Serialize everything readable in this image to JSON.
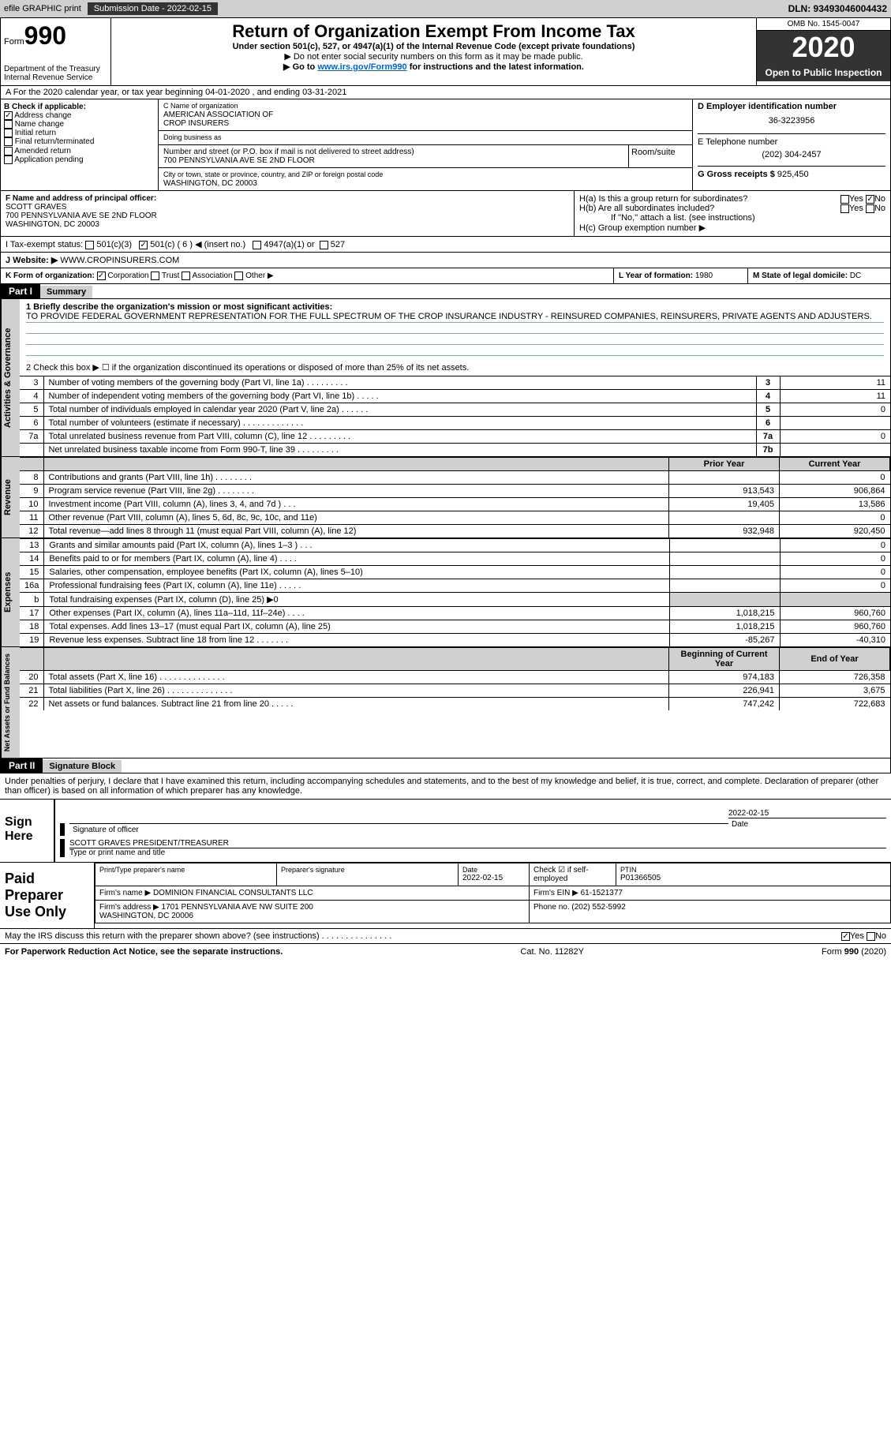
{
  "topbar": {
    "efile": "efile GRAPHIC print",
    "sub_label": "Submission Date - 2022-02-15",
    "dln_label": "DLN: 93493046004432"
  },
  "header": {
    "form_label": "Form",
    "form_num": "990",
    "dept": "Department of the Treasury\nInternal Revenue Service",
    "title": "Return of Organization Exempt From Income Tax",
    "subtitle": "Under section 501(c), 527, or 4947(a)(1) of the Internal Revenue Code (except private foundations)",
    "note1": "▶ Do not enter social security numbers on this form as it may be made public.",
    "note2_pre": "▶ Go to ",
    "note2_link": "www.irs.gov/Form990",
    "note2_post": " for instructions and the latest information.",
    "omb": "OMB No. 1545-0047",
    "year": "2020",
    "inspection": "Open to Public Inspection"
  },
  "row_a": "A For the 2020 calendar year, or tax year beginning 04-01-2020    , and ending 03-31-2021",
  "col_b": {
    "header": "B Check if applicable:",
    "items": [
      "Address change",
      "Name change",
      "Initial return",
      "Final return/terminated",
      "Amended return",
      "Application pending"
    ],
    "checked": [
      true,
      false,
      false,
      false,
      false,
      false
    ]
  },
  "col_c": {
    "lbl_name": "C Name of organization",
    "org": "AMERICAN ASSOCIATION OF\nCROP INSURERS",
    "lbl_dba": "Doing business as",
    "lbl_addr": "Number and street (or P.O. box if mail is not delivered to street address)",
    "lbl_room": "Room/suite",
    "addr": "700 PENNSYLVANIA AVE SE 2ND FLOOR",
    "lbl_city": "City or town, state or province, country, and ZIP or foreign postal code",
    "city": "WASHINGTON, DC  20003"
  },
  "col_d": {
    "lbl": "D Employer identification number",
    "ein": "36-3223956"
  },
  "col_e": {
    "lbl_phone": "E Telephone number",
    "phone": "(202) 304-2457",
    "lbl_gross": "G Gross receipts $",
    "gross": "925,450"
  },
  "col_f": {
    "lbl": "F Name and address of principal officer:",
    "name": "SCOTT GRAVES",
    "addr1": "700 PENNSYLVANIA AVE SE 2ND FLOOR",
    "addr2": "WASHINGTON, DC  20003"
  },
  "col_h": {
    "ha": "H(a)  Is this a group return for subordinates?",
    "hb": "H(b)  Are all subordinates included?",
    "hb_note": "If \"No,\" attach a list. (see instructions)",
    "hc": "H(c)  Group exemption number ▶"
  },
  "row_i": {
    "lbl": "I   Tax-exempt status:",
    "opts": [
      "501(c)(3)",
      "501(c) ( 6 ) ◀ (insert no.)",
      "4947(a)(1) or",
      "527"
    ]
  },
  "row_j": {
    "lbl": "J   Website: ▶",
    "val": "WWW.CROPINSURERS.COM"
  },
  "row_k": {
    "lbl": "K Form of organization:",
    "opts": [
      "Corporation",
      "Trust",
      "Association",
      "Other ▶"
    ]
  },
  "row_l": {
    "lbl": "L Year of formation:",
    "val": "1980"
  },
  "row_m": {
    "lbl": "M State of legal domicile:",
    "val": "DC"
  },
  "part1": {
    "tag": "Part I",
    "title": "Summary",
    "q1_lbl": "1   Briefly describe the organization's mission or most significant activities:",
    "q1_text": "TO PROVIDE FEDERAL GOVERNMENT REPRESENTATION FOR THE FULL SPECTRUM OF THE CROP INSURANCE INDUSTRY - REINSURED COMPANIES, REINSURERS, PRIVATE AGENTS AND ADJUSTERS.",
    "q2": "2   Check this box ▶ ☐  if the organization discontinued its operations or disposed of more than 25% of its net assets.",
    "gov_rows": [
      {
        "n": "3",
        "t": "Number of voting members of the governing body (Part VI, line 1a)   .    .    .    .    .    .    .    .    .",
        "b": "3",
        "v": "11"
      },
      {
        "n": "4",
        "t": "Number of independent voting members of the governing body (Part VI, line 1b)   .    .    .    .    .",
        "b": "4",
        "v": "11"
      },
      {
        "n": "5",
        "t": "Total number of individuals employed in calendar year 2020 (Part V, line 2a)   .    .    .    .    .    .",
        "b": "5",
        "v": "0"
      },
      {
        "n": "6",
        "t": "Total number of volunteers (estimate if necessary)   .    .    .    .    .    .    .    .    .    .    .    .    .",
        "b": "6",
        "v": ""
      },
      {
        "n": "7a",
        "t": "Total unrelated business revenue from Part VIII, column (C), line 12   .    .    .    .    .    .    .    .    .",
        "b": "7a",
        "v": "0"
      },
      {
        "n": "",
        "t": "Net unrelated business taxable income from Form 990-T, line 39   .    .    .    .    .    .    .    .    .",
        "b": "7b",
        "v": ""
      }
    ],
    "hdr_prior": "Prior Year",
    "hdr_curr": "Current Year",
    "rev_rows": [
      {
        "n": "8",
        "t": "Contributions and grants (Part VIII, line 1h)   .    .    .    .    .    .    .    .",
        "p": "",
        "c": "0"
      },
      {
        "n": "9",
        "t": "Program service revenue (Part VIII, line 2g)   .    .    .    .    .    .    .    .",
        "p": "913,543",
        "c": "906,864"
      },
      {
        "n": "10",
        "t": "Investment income (Part VIII, column (A), lines 3, 4, and 7d )   .    .    .",
        "p": "19,405",
        "c": "13,586"
      },
      {
        "n": "11",
        "t": "Other revenue (Part VIII, column (A), lines 5, 6d, 8c, 9c, 10c, and 11e)",
        "p": "",
        "c": "0"
      },
      {
        "n": "12",
        "t": "Total revenue—add lines 8 through 11 (must equal Part VIII, column (A), line 12)",
        "p": "932,948",
        "c": "920,450"
      }
    ],
    "exp_rows": [
      {
        "n": "13",
        "t": "Grants and similar amounts paid (Part IX, column (A), lines 1–3 )   .    .    .",
        "p": "",
        "c": "0"
      },
      {
        "n": "14",
        "t": "Benefits paid to or for members (Part IX, column (A), line 4)   .    .    .    .",
        "p": "",
        "c": "0"
      },
      {
        "n": "15",
        "t": "Salaries, other compensation, employee benefits (Part IX, column (A), lines 5–10)",
        "p": "",
        "c": "0"
      },
      {
        "n": "16a",
        "t": "Professional fundraising fees (Part IX, column (A), line 11e)   .    .    .    .    .",
        "p": "",
        "c": "0"
      },
      {
        "n": "b",
        "t": "Total fundraising expenses (Part IX, column (D), line 25) ▶0",
        "p": "shade",
        "c": "shade"
      },
      {
        "n": "17",
        "t": "Other expenses (Part IX, column (A), lines 11a–11d, 11f–24e)   .    .    .    .",
        "p": "1,018,215",
        "c": "960,760"
      },
      {
        "n": "18",
        "t": "Total expenses. Add lines 13–17 (must equal Part IX, column (A), line 25)",
        "p": "1,018,215",
        "c": "960,760"
      },
      {
        "n": "19",
        "t": "Revenue less expenses. Subtract line 18 from line 12   .    .    .    .    .    .    .",
        "p": "-85,267",
        "c": "-40,310"
      }
    ],
    "hdr_boy": "Beginning of Current Year",
    "hdr_eoy": "End of Year",
    "net_rows": [
      {
        "n": "20",
        "t": "Total assets (Part X, line 16)   .    .    .    .    .    .    .    .    .    .    .    .    .    .",
        "p": "974,183",
        "c": "726,358"
      },
      {
        "n": "21",
        "t": "Total liabilities (Part X, line 26)   .    .    .    .    .    .    .    .    .    .    .    .    .    .",
        "p": "226,941",
        "c": "3,675"
      },
      {
        "n": "22",
        "t": "Net assets or fund balances. Subtract line 21 from line 20   .    .    .    .    .",
        "p": "747,242",
        "c": "722,683"
      }
    ],
    "vlabels": {
      "gov": "Activities & Governance",
      "rev": "Revenue",
      "exp": "Expenses",
      "net": "Net Assets or Fund Balances"
    }
  },
  "part2": {
    "tag": "Part II",
    "title": "Signature Block",
    "perjury": "Under penalties of perjury, I declare that I have examined this return, including accompanying schedules and statements, and to the best of my knowledge and belief, it is true, correct, and complete. Declaration of preparer (other than officer) is based on all information of which preparer has any knowledge.",
    "sign_here": "Sign Here",
    "sig_officer_lbl": "Signature of officer",
    "sig_date": "2022-02-15",
    "date_lbl": "Date",
    "officer_name": "SCOTT GRAVES  PRESIDENT/TREASURER",
    "name_lbl": "Type or print name and title",
    "paid_prep": "Paid Preparer Use Only",
    "prep_name_lbl": "Print/Type preparer's name",
    "prep_sig_lbl": "Preparer's signature",
    "prep_date_lbl": "Date",
    "prep_date": "2022-02-15",
    "self_emp": "Check ☑ if self-employed",
    "ptin_lbl": "PTIN",
    "ptin": "P01366505",
    "firm_name_lbl": "Firm's name    ▶",
    "firm_name": "DOMINION FINANCIAL CONSULTANTS LLC",
    "firm_ein_lbl": "Firm's EIN ▶",
    "firm_ein": "61-1521377",
    "firm_addr_lbl": "Firm's address ▶",
    "firm_addr": "1701 PENNSYLVANIA AVE NW SUITE 200\nWASHINGTON, DC  20006",
    "firm_phone_lbl": "Phone no.",
    "firm_phone": "(202) 552-5992",
    "discuss": "May the IRS discuss this return with the preparer shown above? (see instructions)   .    .    .    .    .    .    .    .    .    .    .    .    .    .    ."
  },
  "footer": {
    "left": "For Paperwork Reduction Act Notice, see the separate instructions.",
    "mid": "Cat. No. 11282Y",
    "right": "Form 990 (2020)"
  }
}
